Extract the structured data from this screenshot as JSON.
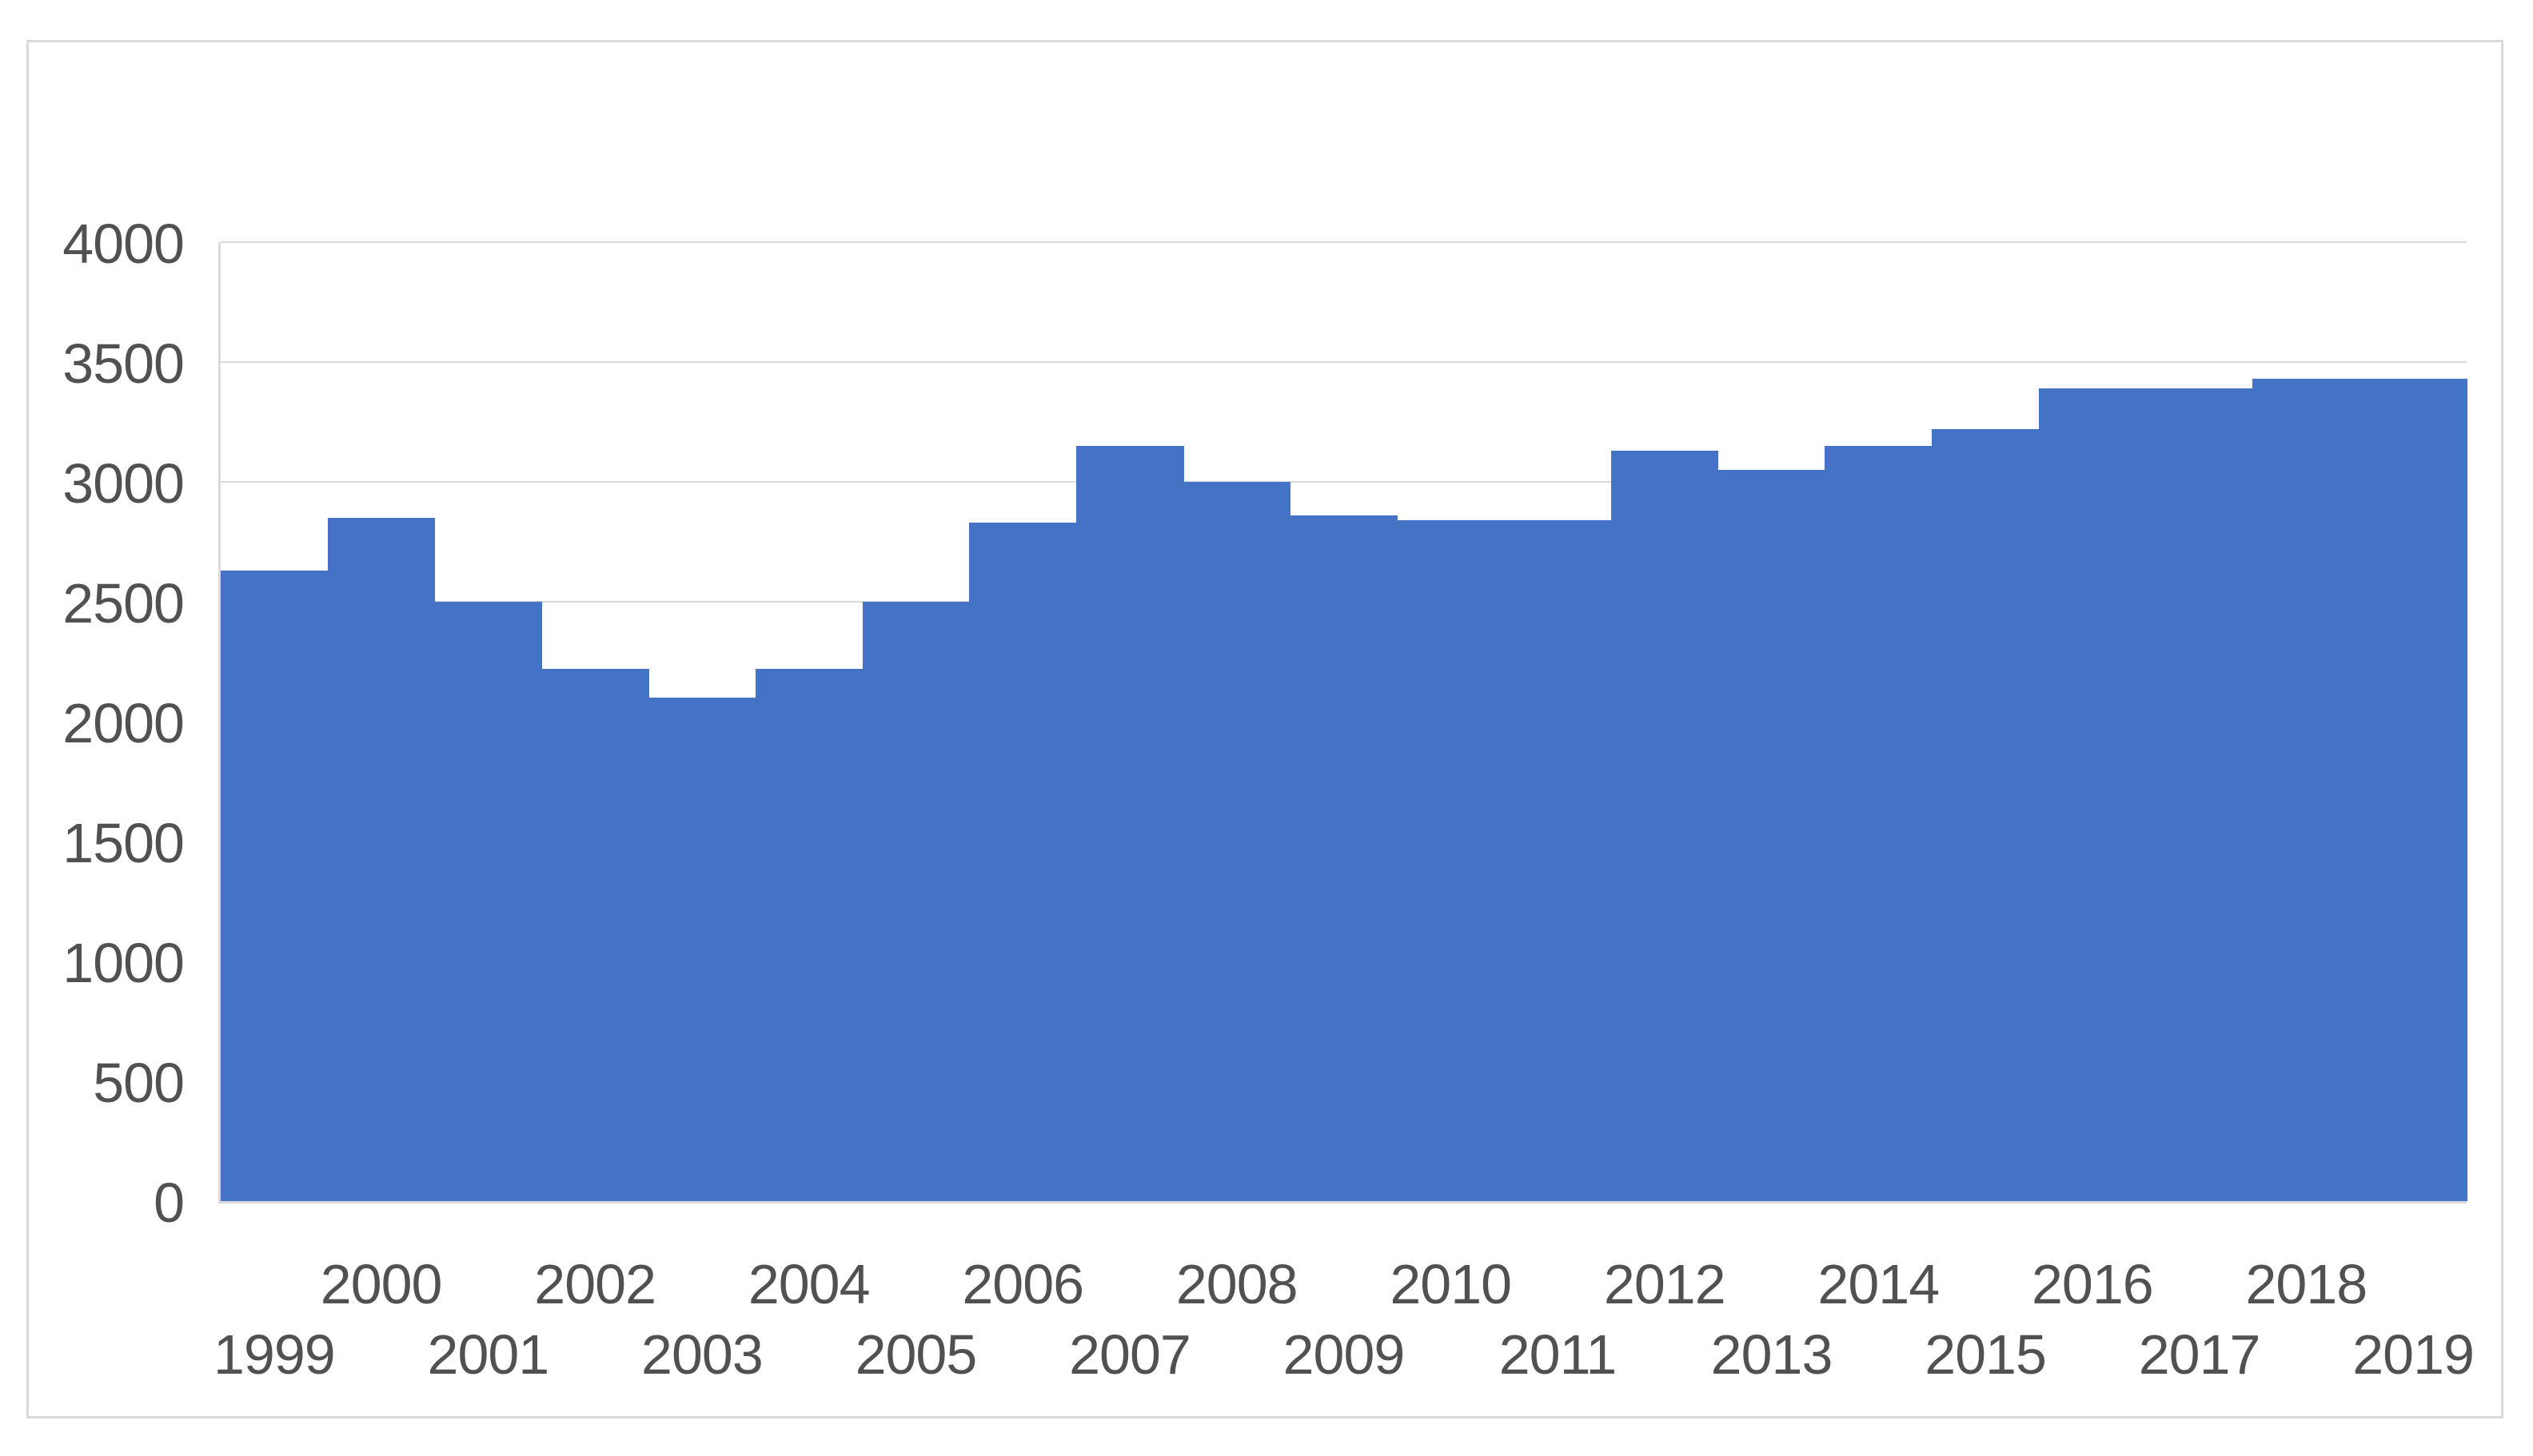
{
  "chart_data": {
    "type": "bar",
    "title": "",
    "xlabel": "",
    "ylabel": "",
    "categories": [
      "1999",
      "2000",
      "2001",
      "2002",
      "2003",
      "2004",
      "2005",
      "2006",
      "2007",
      "2008",
      "2009",
      "2010",
      "2011",
      "2012",
      "2013",
      "2014",
      "2015",
      "2016",
      "2017",
      "2018",
      "2019"
    ],
    "values": [
      2630,
      2850,
      2500,
      2220,
      2100,
      2220,
      2500,
      2830,
      3150,
      3000,
      2860,
      2840,
      2840,
      3130,
      3050,
      3150,
      3220,
      3390,
      3390,
      3430,
      3430
    ],
    "ylim": [
      0,
      4000
    ],
    "y_ticks": [
      0,
      500,
      1000,
      1500,
      2000,
      2500,
      3000,
      3500,
      4000
    ],
    "bar_gap": 0,
    "grid": "horizontal",
    "legend_position": "none",
    "x_tick_layout": "staggered-two-rows",
    "colors": {
      "bar_fill": "#4472C4",
      "gridline": "#D9D9D9",
      "axis_line": "#D9D9D9",
      "tick_text": "#515151",
      "chart_border": "#D9D9D9",
      "background": "#FFFFFF"
    }
  }
}
